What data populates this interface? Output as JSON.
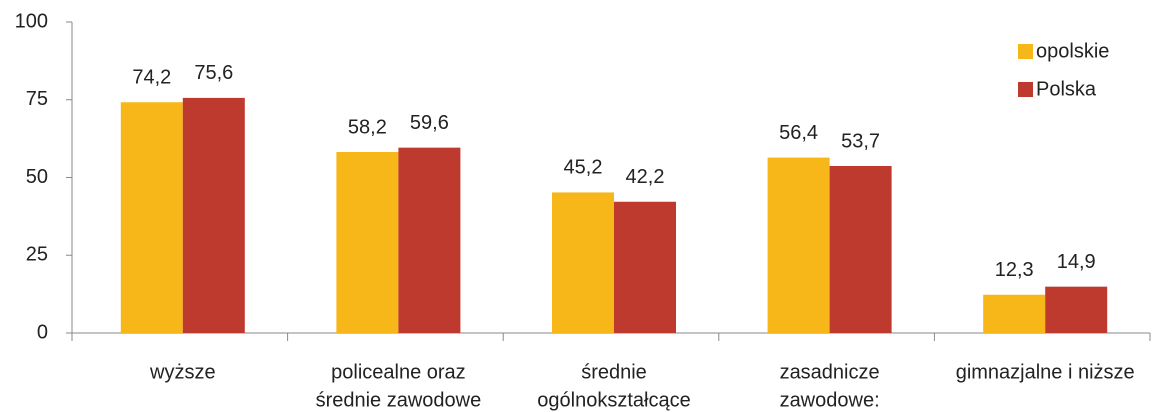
{
  "chart_data": {
    "type": "bar",
    "categories": [
      [
        "wyższe"
      ],
      [
        "policealne oraz",
        "średnie zawodowe"
      ],
      [
        "średnie",
        "ogólnokształcące"
      ],
      [
        "zasadnicze",
        "zawodowe:"
      ],
      [
        "gimnazjalne i niższe"
      ]
    ],
    "series": [
      {
        "name": "opolskie",
        "color": "#f7b718",
        "values": [
          74.2,
          58.2,
          45.2,
          56.4,
          12.3
        ],
        "value_labels": [
          "74,2",
          "58,2",
          "45,2",
          "56,4",
          "12,3"
        ]
      },
      {
        "name": "Polska",
        "color": "#be3a2f",
        "values": [
          75.6,
          59.6,
          42.2,
          53.7,
          14.9
        ],
        "value_labels": [
          "75,6",
          "59,6",
          "42,2",
          "53,7",
          "14,9"
        ]
      }
    ],
    "ylim": [
      0,
      100
    ],
    "yticks": [
      0,
      25,
      50,
      75,
      100
    ],
    "grid": false,
    "legend": "top-right"
  }
}
